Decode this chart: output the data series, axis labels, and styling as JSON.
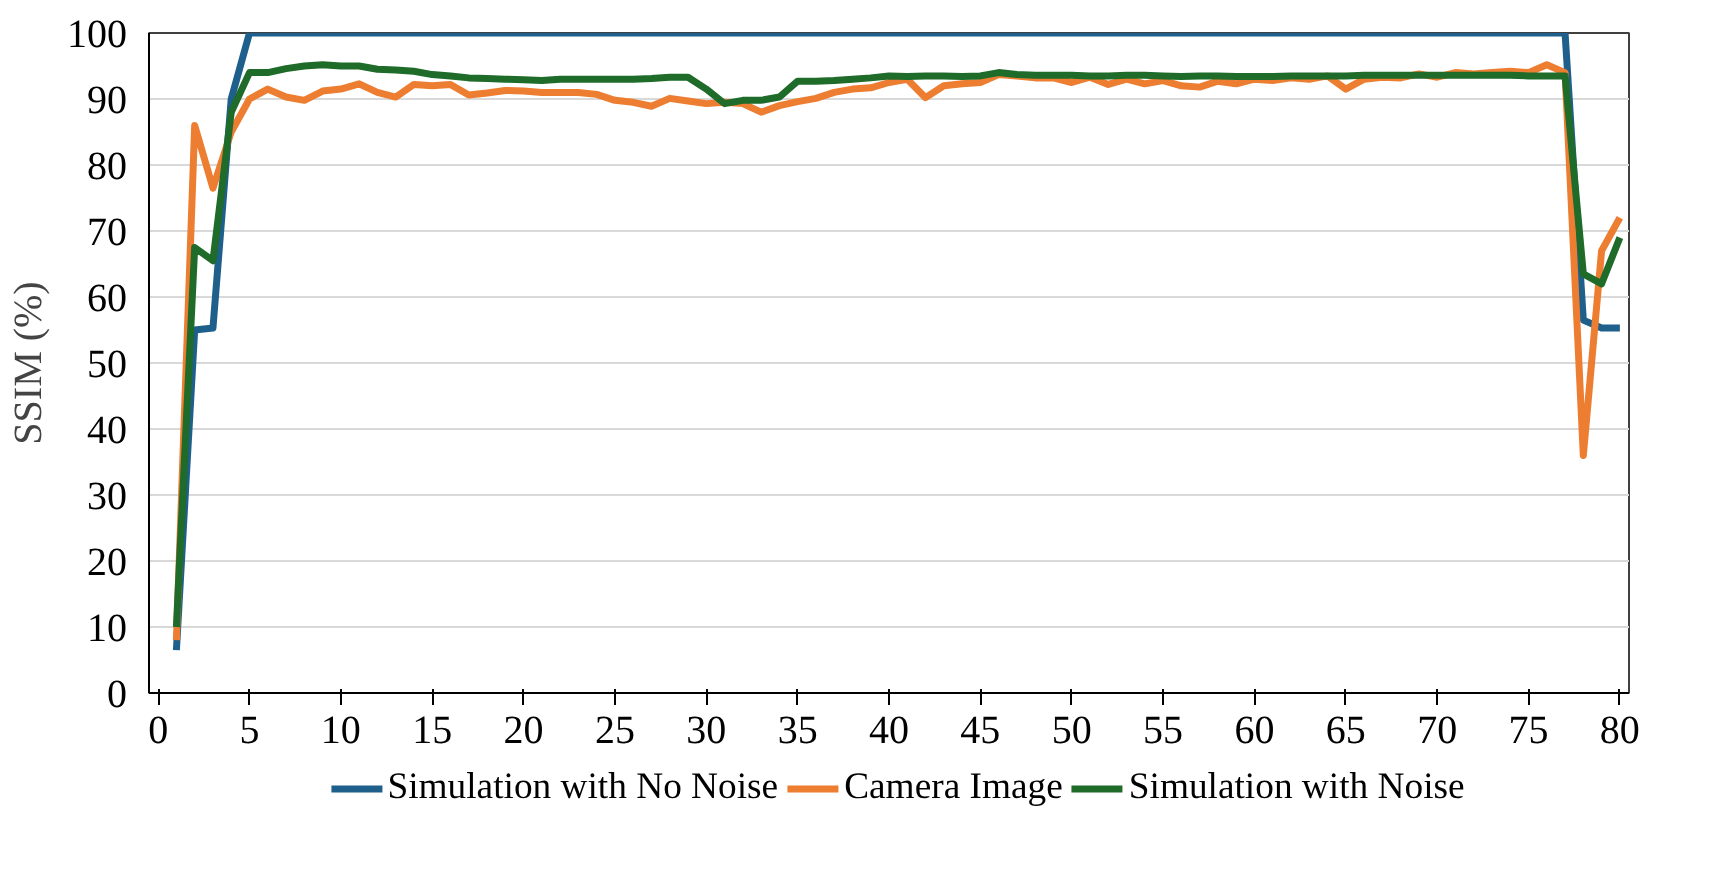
{
  "chart_data": {
    "type": "line",
    "ylabel": "SSIM (%)",
    "x": [
      1,
      2,
      3,
      4,
      5,
      6,
      7,
      8,
      9,
      10,
      11,
      12,
      13,
      14,
      15,
      16,
      17,
      18,
      19,
      20,
      21,
      22,
      23,
      24,
      25,
      26,
      27,
      28,
      29,
      30,
      31,
      32,
      33,
      34,
      35,
      36,
      37,
      38,
      39,
      40,
      41,
      42,
      43,
      44,
      45,
      46,
      47,
      48,
      49,
      50,
      51,
      52,
      53,
      54,
      55,
      56,
      57,
      58,
      59,
      60,
      61,
      62,
      63,
      64,
      65,
      66,
      67,
      68,
      69,
      70,
      71,
      72,
      73,
      74,
      75,
      76,
      77,
      78,
      79,
      80
    ],
    "series": [
      {
        "name": "Simulation with No Noise",
        "color": "#1f5f8b",
        "values": [
          6.5,
          55,
          55.3,
          90,
          100,
          100,
          100,
          100,
          100,
          100,
          100,
          100,
          100,
          100,
          100,
          100,
          100,
          100,
          100,
          100,
          100,
          100,
          100,
          100,
          100,
          100,
          100,
          100,
          100,
          100,
          100,
          100,
          100,
          100,
          100,
          100,
          100,
          100,
          100,
          100,
          100,
          100,
          100,
          100,
          100,
          100,
          100,
          100,
          100,
          100,
          100,
          100,
          100,
          100,
          100,
          100,
          100,
          100,
          100,
          100,
          100,
          100,
          100,
          100,
          100,
          100,
          100,
          100,
          100,
          100,
          100,
          100,
          100,
          100,
          100,
          100,
          100,
          56.5,
          55.3,
          55.3
        ]
      },
      {
        "name": "Camera Image",
        "color": "#ed7d31",
        "values": [
          8,
          86,
          76.5,
          85,
          90,
          91.5,
          90.3,
          89.8,
          91.2,
          91.5,
          92.3,
          91,
          90.3,
          92.2,
          92,
          92.2,
          90.6,
          90.9,
          91.3,
          91.2,
          91,
          91,
          91,
          90.7,
          89.8,
          89.5,
          88.9,
          90.1,
          89.7,
          89.3,
          89.5,
          89.3,
          88,
          89,
          89.6,
          90.1,
          91,
          91.5,
          91.7,
          92.5,
          93,
          90.2,
          92,
          92.3,
          92.5,
          93.7,
          93.5,
          93.2,
          93.2,
          92.5,
          93.3,
          92.2,
          93,
          92.3,
          92.8,
          92,
          91.8,
          92.7,
          92.3,
          93,
          92.8,
          93.2,
          93,
          93.5,
          91.5,
          93,
          93.3,
          93.2,
          93.8,
          93.3,
          94,
          93.8,
          94,
          94.2,
          94,
          95.2,
          94,
          36,
          67,
          72
        ]
      },
      {
        "name": "Simulation with Noise",
        "color": "#1e6b2a",
        "values": [
          10,
          67.5,
          65.5,
          88,
          94,
          94,
          94.6,
          95,
          95.2,
          95,
          95,
          94.5,
          94.4,
          94.2,
          93.7,
          93.5,
          93.2,
          93.1,
          93,
          92.9,
          92.8,
          93,
          93,
          93,
          93,
          93,
          93.1,
          93.3,
          93.3,
          91.5,
          89.3,
          89.8,
          89.8,
          90.3,
          92.7,
          92.7,
          92.8,
          93,
          93.2,
          93.5,
          93.4,
          93.5,
          93.5,
          93.4,
          93.5,
          94,
          93.7,
          93.6,
          93.6,
          93.6,
          93.5,
          93.5,
          93.6,
          93.6,
          93.5,
          93.4,
          93.5,
          93.5,
          93.4,
          93.4,
          93.4,
          93.5,
          93.5,
          93.5,
          93.5,
          93.6,
          93.6,
          93.6,
          93.6,
          93.6,
          93.6,
          93.6,
          93.6,
          93.6,
          93.5,
          93.5,
          93.5,
          63.5,
          62,
          69
        ]
      }
    ],
    "xlim": [
      -0.5,
      80.5
    ],
    "xticks": [
      0,
      5,
      10,
      15,
      20,
      25,
      30,
      35,
      40,
      45,
      50,
      55,
      60,
      65,
      70,
      75,
      80
    ],
    "ylim": [
      0,
      100
    ],
    "yticks": [
      0,
      10,
      20,
      30,
      40,
      50,
      60,
      70,
      80,
      90,
      100
    ],
    "grid": "y",
    "legend": "bottom",
    "marker": "none",
    "line_style": "solid"
  }
}
